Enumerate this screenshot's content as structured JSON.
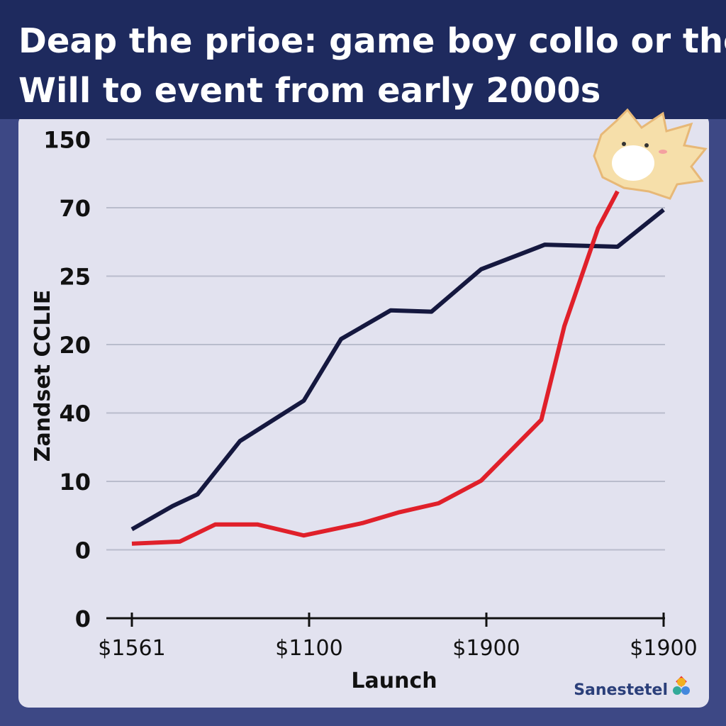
{
  "chart_data": {
    "type": "line",
    "title": [
      "Deap the prioe: game boy collo or the",
      "Will to event from early 2000s"
    ],
    "ylabel": "Zandset CCLIE",
    "xlabel": "Launch",
    "brand": "Sanestetel",
    "xlim": [
      0,
      3
    ],
    "xticks": [
      {
        "value": 0,
        "label": "$1561"
      },
      {
        "value": 1,
        "label": "$1100"
      },
      {
        "value": 2,
        "label": "$1900"
      },
      {
        "value": 3,
        "label": "$1900"
      }
    ],
    "ylim": [
      0,
      7
    ],
    "yticks": [
      {
        "value": 7,
        "label": "150"
      },
      {
        "value": 6,
        "label": "70"
      },
      {
        "value": 5,
        "label": "25"
      },
      {
        "value": 4,
        "label": "20"
      },
      {
        "value": 3,
        "label": "40"
      },
      {
        "value": 2,
        "label": "10"
      },
      {
        "value": 1,
        "label": "0"
      },
      {
        "value": 0,
        "label": "0"
      }
    ],
    "grid": true,
    "series": [
      {
        "color": "#15183f",
        "x": [
          0,
          0.23,
          0.37,
          0.61,
          0.97,
          1.18,
          1.46,
          1.69,
          1.97,
          2.33,
          2.74,
          3
        ],
        "values": [
          1.3,
          1.64,
          1.81,
          2.59,
          3.18,
          4.08,
          4.5,
          4.48,
          5.1,
          5.46,
          5.43,
          5.97
        ]
      },
      {
        "color": "#e0202a",
        "x": [
          0,
          0.27,
          0.47,
          0.71,
          0.97,
          1.3,
          1.51,
          1.73,
          1.97,
          2.31,
          2.44,
          2.63,
          2.74
        ],
        "values": [
          1.09,
          1.12,
          1.37,
          1.37,
          1.21,
          1.39,
          1.55,
          1.68,
          2.01,
          2.9,
          4.27,
          5.7,
          6.24
        ]
      }
    ]
  }
}
